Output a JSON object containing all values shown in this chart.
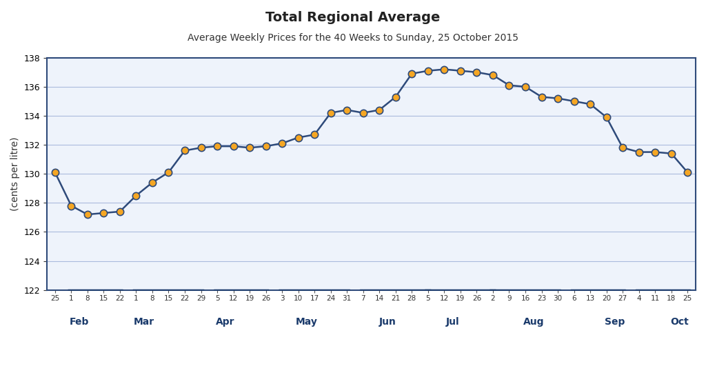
{
  "title": "Total Regional Average",
  "subtitle": "Average Weekly Prices for the 40 Weeks to Sunday, 25 October 2015",
  "ylabel": "(cents per litre)",
  "ylim": [
    122,
    138
  ],
  "yticks": [
    122,
    124,
    126,
    128,
    130,
    132,
    134,
    136,
    138
  ],
  "line_color": "#2E4A7A",
  "marker_color": "#F5A623",
  "marker_edge_color": "#2E4A7A",
  "bg_color": "#FFFFFF",
  "plot_bg_color": "#EEF3FB",
  "grid_color": "#AABBDD",
  "tick_labels": [
    "25",
    "1",
    "8",
    "15",
    "22",
    "1",
    "8",
    "15",
    "22",
    "29",
    "5",
    "12",
    "19",
    "26",
    "3",
    "10",
    "17",
    "24",
    "31",
    "7",
    "14",
    "21",
    "28",
    "5",
    "12",
    "19",
    "26",
    "2",
    "9",
    "16",
    "23",
    "30",
    "6",
    "13",
    "20",
    "27",
    "4",
    "11",
    "18",
    "25"
  ],
  "month_labels": [
    "Feb",
    "Mar",
    "Apr",
    "May",
    "Jun",
    "Jul",
    "Aug",
    "Sep",
    "Oct"
  ],
  "month_positions": [
    1.5,
    5.5,
    10.5,
    15.5,
    20.5,
    24.5,
    29.5,
    34.5,
    38.5
  ],
  "values": [
    130.1,
    127.8,
    127.2,
    127.3,
    127.4,
    128.5,
    129.4,
    130.1,
    131.6,
    131.8,
    131.9,
    131.9,
    131.8,
    131.9,
    132.1,
    132.5,
    132.7,
    134.2,
    134.4,
    134.2,
    134.4,
    135.3,
    136.9,
    137.1,
    137.2,
    137.1,
    137.0,
    136.8,
    136.1,
    136.0,
    135.3,
    135.2,
    135.0,
    134.8,
    133.9,
    131.8,
    131.5,
    131.5,
    131.4,
    130.1
  ]
}
